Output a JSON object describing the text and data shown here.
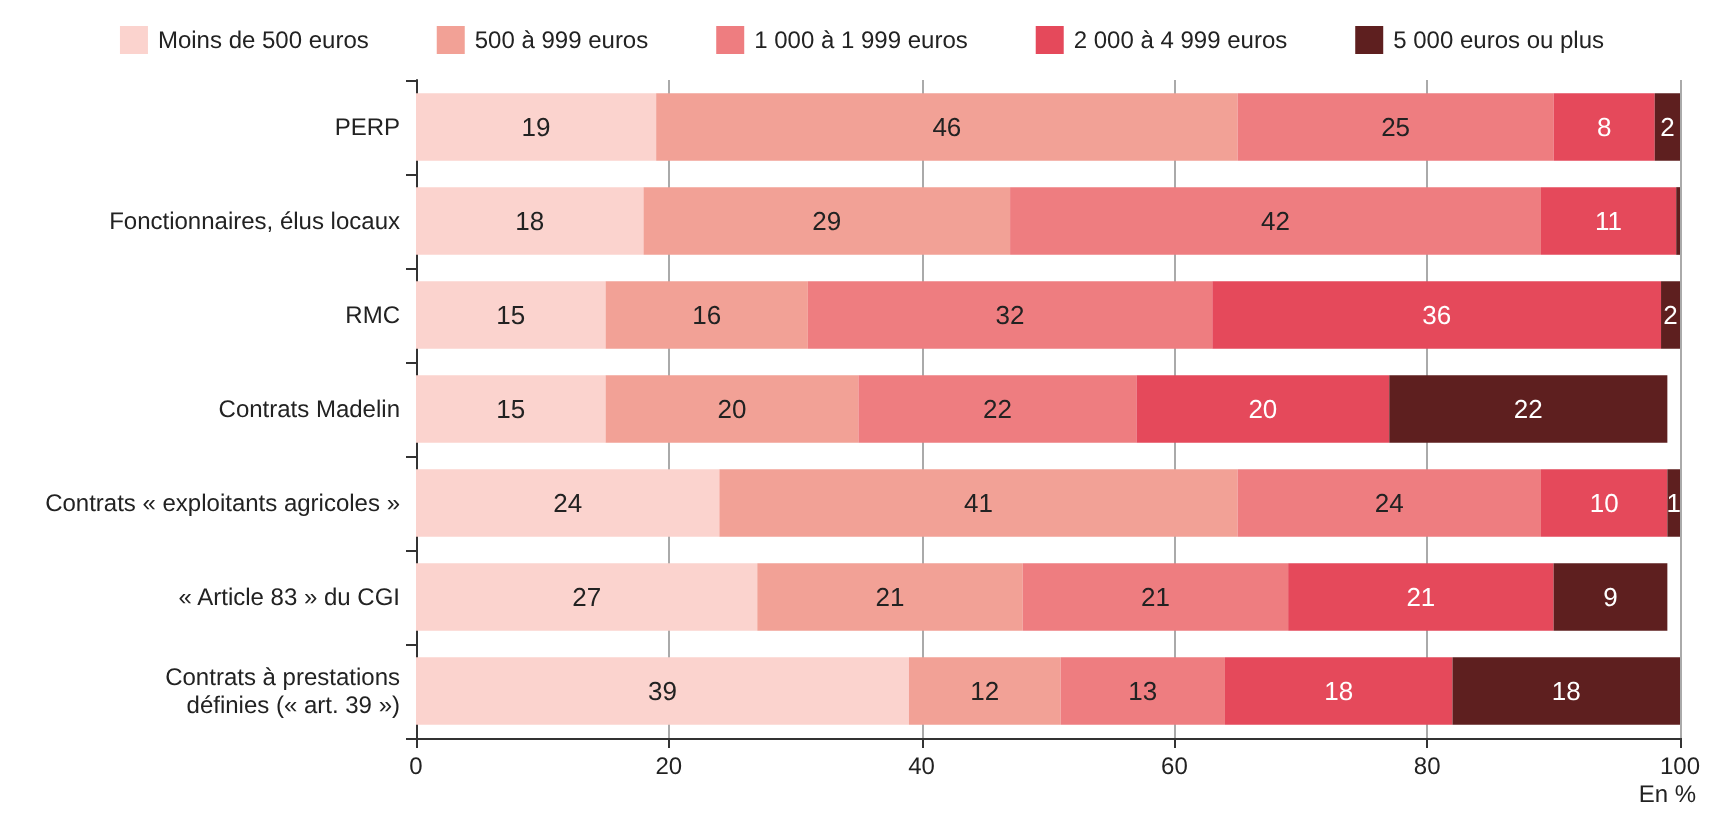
{
  "chart_data": {
    "type": "bar",
    "orientation": "horizontal",
    "stacked": true,
    "xlabel": "En %",
    "categories": [
      "PERP",
      "Fonctionnaires, élus locaux",
      "RMC",
      "Contrats Madelin",
      "Contrats « exploitants agricoles »",
      "« Article 83 » du CGI",
      "Contrats à prestations\ndéfinies (« art. 39 »)"
    ],
    "series": [
      {
        "name": "Moins de 500 euros",
        "color": "#fbd3ce",
        "values": [
          19,
          18,
          15,
          15,
          24,
          27,
          39
        ],
        "value_labels": [
          "19",
          "18",
          "15",
          "15",
          "24",
          "27",
          "39"
        ]
      },
      {
        "name": "500 à 999 euros",
        "color": "#f2a196",
        "values": [
          46,
          29,
          16,
          20,
          41,
          21,
          12
        ],
        "value_labels": [
          "46",
          "29",
          "16",
          "20",
          "41",
          "21",
          "12"
        ]
      },
      {
        "name": "1 000 à 1 999 euros",
        "color": "#ee7d80",
        "values": [
          25,
          42,
          32,
          22,
          24,
          21,
          13
        ],
        "value_labels": [
          "25",
          "42",
          "32",
          "22",
          "24",
          "21",
          "13"
        ]
      },
      {
        "name": "2 000 à 4 999 euros",
        "color": "#e5495b",
        "values": [
          8,
          10.7,
          35.5,
          20,
          10,
          21,
          18
        ],
        "value_labels": [
          "8",
          "11",
          "36",
          "20",
          "10",
          "21",
          "18"
        ]
      },
      {
        "name": "5 000 euros ou plus",
        "color": "#5e1f1f",
        "values": [
          2,
          0.3,
          1.5,
          22,
          1,
          9,
          18
        ],
        "value_labels": [
          "2",
          null,
          "2",
          "22",
          "1",
          "9",
          "18"
        ]
      }
    ],
    "xlim": [
      0,
      100
    ],
    "xticks": [
      0,
      20,
      40,
      60,
      80,
      100
    ],
    "grid": "x",
    "legend": "top"
  }
}
